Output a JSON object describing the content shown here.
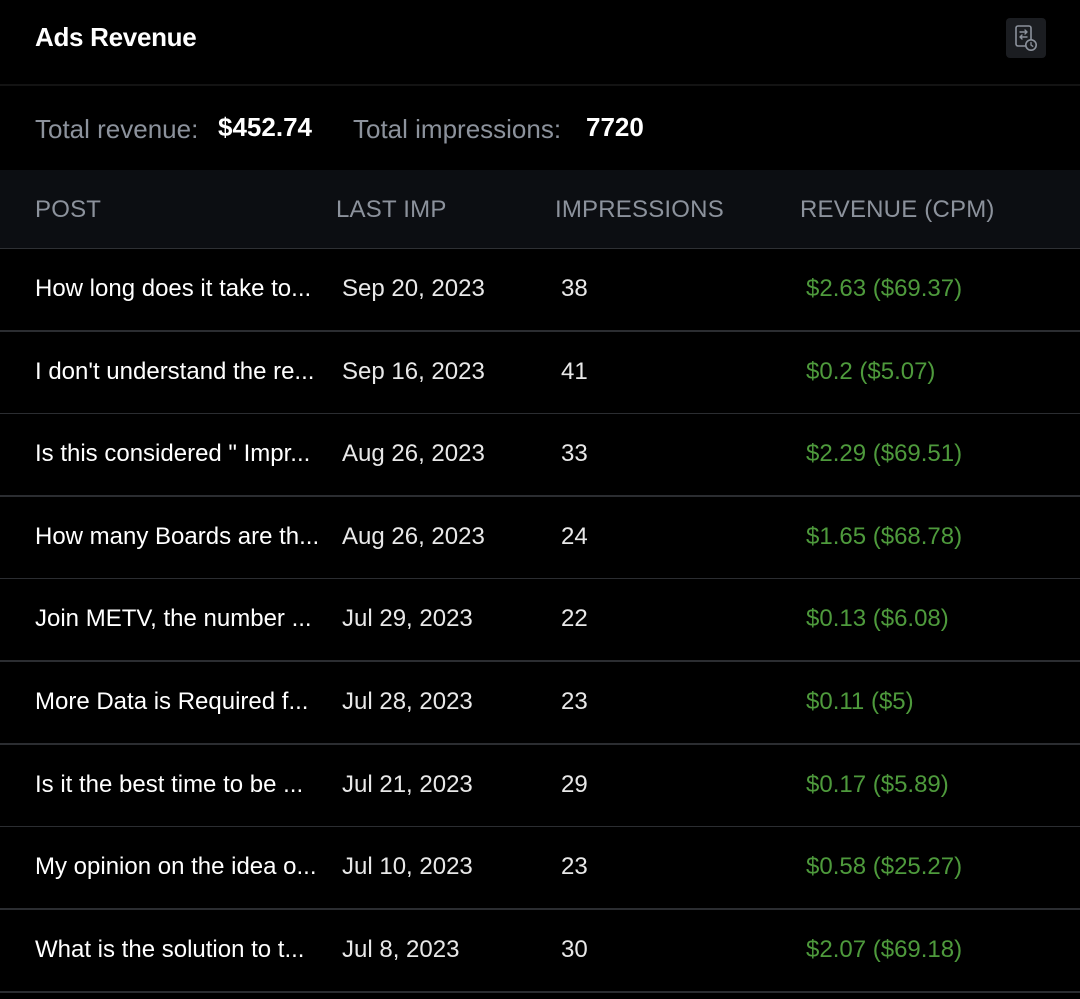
{
  "header": {
    "title": "Ads Revenue",
    "report_icon": "report-clock-icon"
  },
  "summary": {
    "revenue_label": "Total revenue:",
    "revenue_value": "$452.74",
    "impressions_label": "Total impressions:",
    "impressions_value": "7720"
  },
  "table": {
    "columns": [
      "POST",
      "LAST IMP",
      "IMPRESSIONS",
      "REVENUE (CPM)"
    ],
    "rows": [
      {
        "post": "How long does it take to...",
        "last_imp": "Sep 20, 2023",
        "impressions": "38",
        "revenue": "$2.63 ($69.37)"
      },
      {
        "post": "I don't understand the re...",
        "last_imp": "Sep 16, 2023",
        "impressions": "41",
        "revenue": "$0.2 ($5.07)"
      },
      {
        "post": "Is this considered \" Impr...",
        "last_imp": "Aug 26, 2023",
        "impressions": "33",
        "revenue": "$2.29 ($69.51)"
      },
      {
        "post": "How many Boards are th...",
        "last_imp": "Aug 26, 2023",
        "impressions": "24",
        "revenue": "$1.65 ($68.78)"
      },
      {
        "post": "Join METV, the number ...",
        "last_imp": "Jul 29, 2023",
        "impressions": "22",
        "revenue": "$0.13 ($6.08)"
      },
      {
        "post": "More Data is Required f...",
        "last_imp": "Jul 28, 2023",
        "impressions": "23",
        "revenue": "$0.11 ($5)"
      },
      {
        "post": "Is it the best time to be ...",
        "last_imp": "Jul 21, 2023",
        "impressions": "29",
        "revenue": "$0.17 ($5.89)"
      },
      {
        "post": "My opinion on the idea o...",
        "last_imp": "Jul 10, 2023",
        "impressions": "23",
        "revenue": "$0.58 ($25.27)"
      },
      {
        "post": "What is the solution to t...",
        "last_imp": "Jul 8, 2023",
        "impressions": "30",
        "revenue": "$2.07 ($69.18)"
      }
    ]
  },
  "colors": {
    "background": "#000000",
    "header_row_bg": "#0c0e12",
    "muted_text": "#8c929c",
    "revenue_green": "#4e9a3c"
  }
}
